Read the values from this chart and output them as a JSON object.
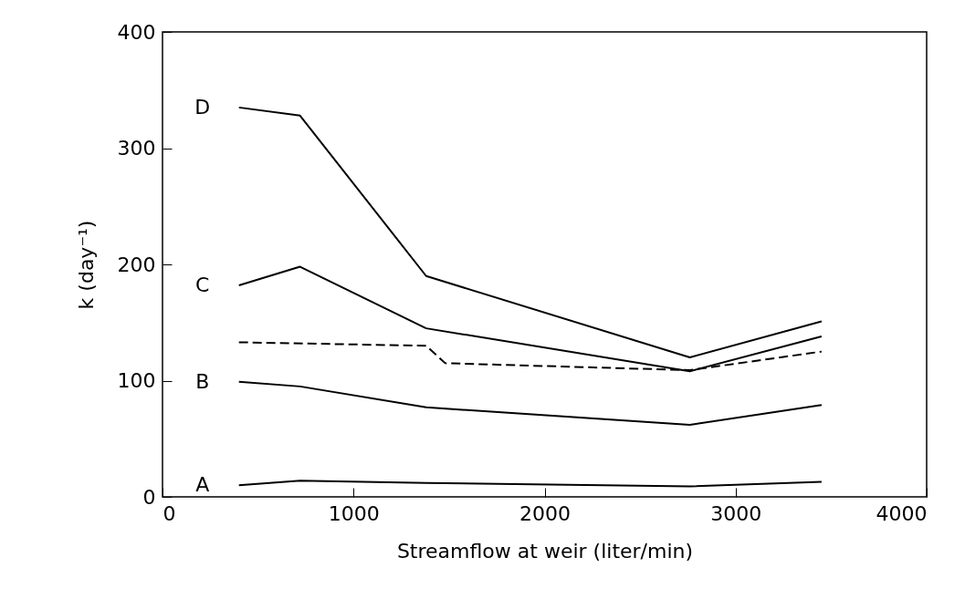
{
  "chart_data": {
    "type": "line",
    "xlabel": "Streamflow at weir (liter/min)",
    "ylabel": "k (day⁻¹)",
    "x": [
      400,
      720,
      1380,
      2760,
      3450
    ],
    "series": [
      {
        "name": "D",
        "color": "#000000",
        "line_style": "solid",
        "values": [
          335,
          328,
          190,
          120,
          151
        ]
      },
      {
        "name": "C",
        "color": "#000000",
        "line_style": "solid",
        "values": [
          182,
          198,
          145,
          108,
          138
        ]
      },
      {
        "color": "#000000",
        "line_style": "dashed",
        "x": [
          400,
          1380,
          1480,
          2760,
          3450
        ],
        "values": [
          133,
          130,
          115,
          109,
          125
        ]
      },
      {
        "name": "B",
        "color": "#000000",
        "line_style": "solid",
        "values": [
          99,
          95,
          77,
          62,
          79
        ]
      },
      {
        "name": "A",
        "color": "#000000",
        "line_style": "solid",
        "values": [
          10,
          14,
          12,
          9,
          13
        ]
      }
    ],
    "xlim": [
      0,
      4000
    ],
    "ylim": [
      0,
      400
    ],
    "xticks": [
      0,
      1000,
      2000,
      3000,
      4000
    ],
    "yticks": [
      0,
      100,
      200,
      300,
      400
    ],
    "grid": false,
    "legend": false,
    "marker": "none"
  }
}
